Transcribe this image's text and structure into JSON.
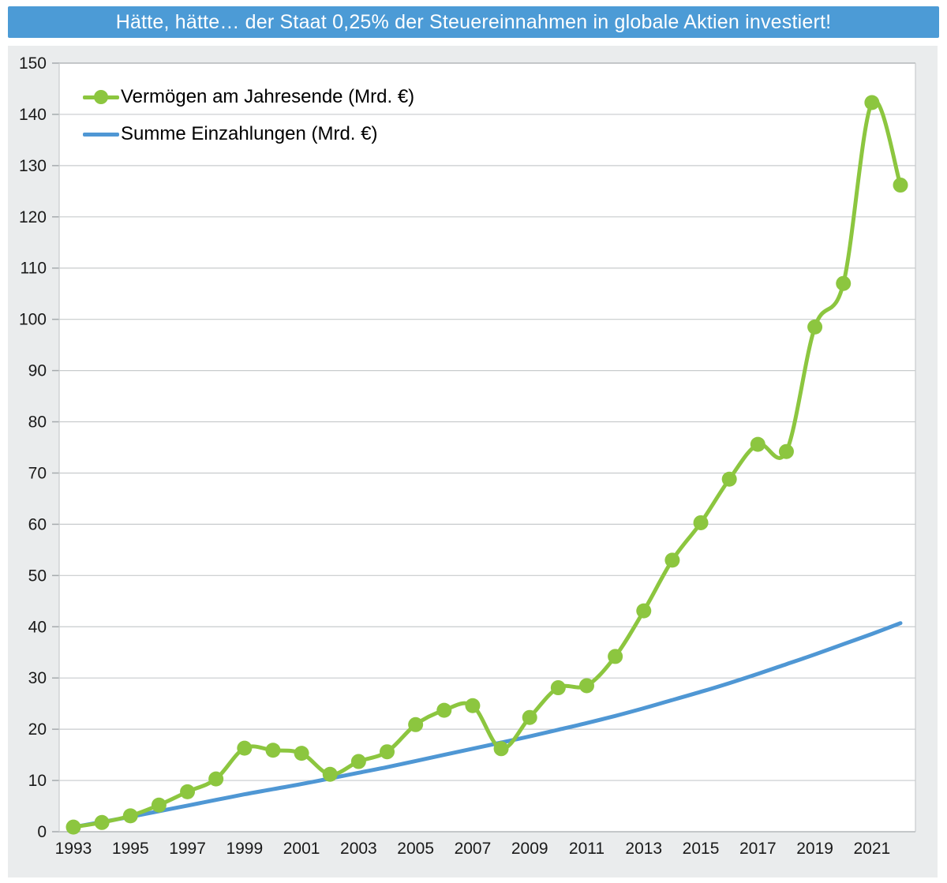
{
  "title": "Hätte, hätte… der Staat 0,25% der Steuereinnahmen in globale Aktien investiert!",
  "colors": {
    "title_bar_bg": "#4C9BD6",
    "title_text": "#FFFFFF",
    "panel_bg": "#EAECED",
    "plot_bg": "#FFFFFF",
    "gridline": "#C8CBCD",
    "axis_line": "#A6ABAE",
    "tick_text": "#1A1A1A",
    "series_green": "#8CC63F",
    "series_blue": "#4F97D4"
  },
  "chart_data": {
    "type": "line",
    "x": [
      1993,
      1994,
      1995,
      1996,
      1997,
      1998,
      1999,
      2000,
      2001,
      2002,
      2003,
      2004,
      2005,
      2006,
      2007,
      2008,
      2009,
      2010,
      2011,
      2012,
      2013,
      2014,
      2015,
      2016,
      2017,
      2018,
      2019,
      2020,
      2021,
      2022
    ],
    "series": [
      {
        "name": "Vermögen am Jahresende (Mrd. €)",
        "color": "#8CC63F",
        "marker": true,
        "smooth": true,
        "values": [
          0.9,
          1.8,
          3.1,
          5.2,
          7.8,
          10.3,
          16.3,
          15.9,
          15.3,
          11.2,
          13.7,
          15.6,
          20.9,
          23.7,
          24.6,
          16.2,
          22.3,
          28.1,
          28.5,
          34.2,
          43.1,
          53.0,
          60.3,
          68.8,
          75.6,
          74.2,
          98.5,
          107.0,
          142.3,
          126.2
        ]
      },
      {
        "name": "Summe Einzahlungen (Mrd. €)",
        "color": "#4F97D4",
        "marker": false,
        "smooth": true,
        "values": [
          0.9,
          1.9,
          2.9,
          4.0,
          5.1,
          6.2,
          7.3,
          8.3,
          9.3,
          10.4,
          11.5,
          12.6,
          13.8,
          15.0,
          16.2,
          17.4,
          18.6,
          19.9,
          21.2,
          22.6,
          24.1,
          25.7,
          27.3,
          29.0,
          30.8,
          32.7,
          34.6,
          36.6,
          38.6,
          40.7
        ]
      }
    ],
    "ylim": [
      0,
      150
    ],
    "yticks": [
      0,
      10,
      20,
      30,
      40,
      50,
      60,
      70,
      80,
      90,
      100,
      110,
      120,
      130,
      140,
      150
    ],
    "xticks": [
      1993,
      1995,
      1997,
      1999,
      2001,
      2003,
      2005,
      2007,
      2009,
      2011,
      2013,
      2015,
      2017,
      2019,
      2021
    ],
    "grid": "horizontal",
    "legend_position": "top-left"
  }
}
